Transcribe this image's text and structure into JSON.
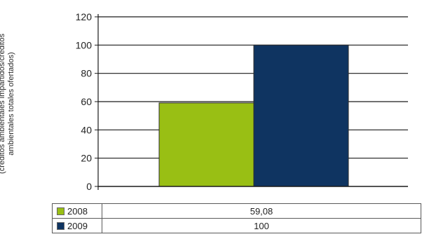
{
  "chart_data": {
    "type": "bar",
    "title": "",
    "ylabel_lines": [
      "(créditos ambientales impartidos/créditos",
      "ambientales totales ofertados)"
    ],
    "xlabel": "",
    "ylim": [
      0,
      120
    ],
    "yticks": [
      0,
      20,
      40,
      60,
      80,
      100,
      120
    ],
    "grid": true,
    "legend": "data-table-below",
    "series": [
      {
        "name": "2008",
        "value": 59.08,
        "label": "59,08",
        "color": "#99bf14"
      },
      {
        "name": "2009",
        "value": 100,
        "label": "100",
        "color": "#0f3461"
      }
    ]
  }
}
